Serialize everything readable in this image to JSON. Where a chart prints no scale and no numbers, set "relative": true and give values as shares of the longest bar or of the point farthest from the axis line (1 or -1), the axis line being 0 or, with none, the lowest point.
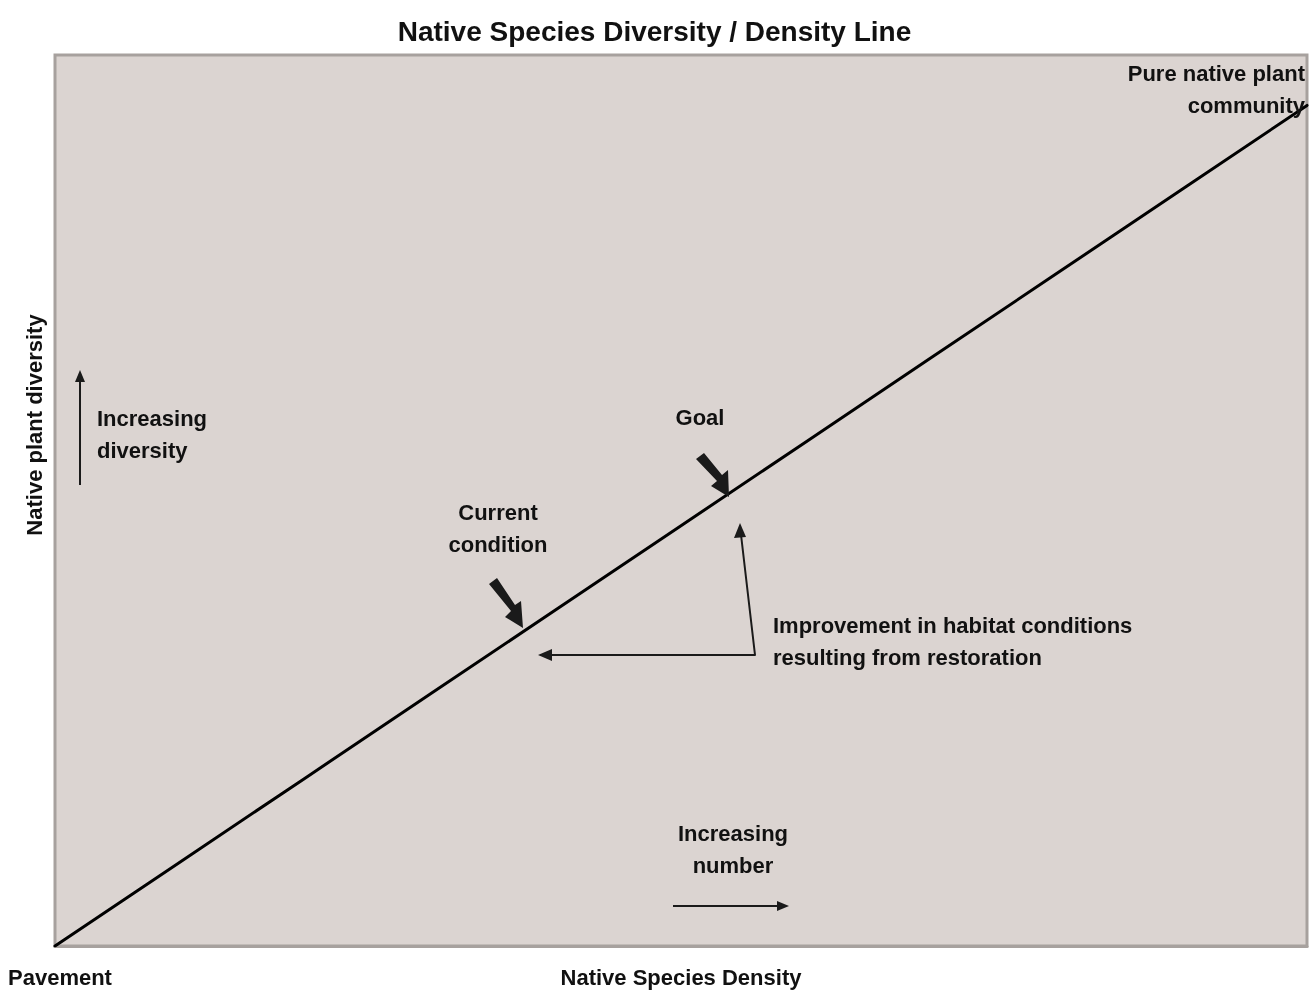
{
  "chart_data": {
    "type": "line",
    "title": "Native Species Diversity / Density Line",
    "xlabel": "Native Species Density",
    "ylabel": "Native plant diversity",
    "relative": true,
    "categories": [
      null,
      null,
      null,
      null,
      null,
      null,
      null,
      null,
      null,
      null,
      null
    ],
    "series": [
      {
        "color": "#000000",
        "values": [
          0,
          0.1,
          0.2,
          0.3,
          0.4,
          0.5,
          0.6,
          0.7,
          0.8,
          0.9,
          1
        ]
      }
    ],
    "marker": "none",
    "line_style": "solid",
    "tick_labels": false,
    "annotations": [
      "Pure native plant community",
      "Increasing diversity",
      "Goal",
      "Current condition",
      "Improvement in habitat conditions resulting from restoration",
      "Increasing number",
      "Pavement"
    ]
  }
}
